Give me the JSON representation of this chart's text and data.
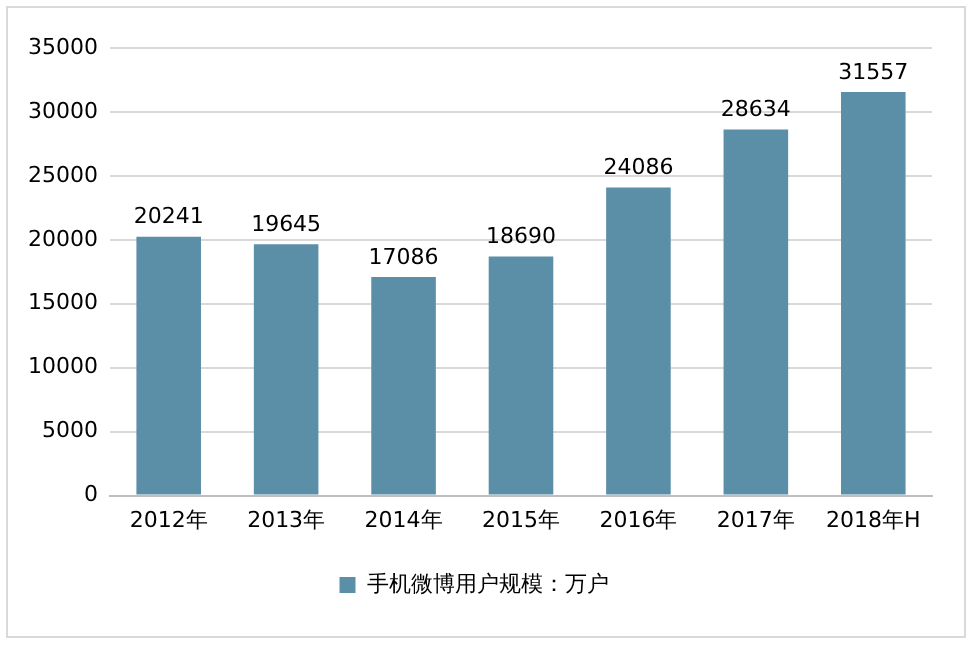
{
  "chart_data": {
    "type": "bar",
    "categories": [
      "2012年",
      "2013年",
      "2014年",
      "2015年",
      "2016年",
      "2017年",
      "2018年H"
    ],
    "series": [
      {
        "name": "手机微博用户规模：万户",
        "color": "#5b8fa8",
        "values": [
          20241,
          19645,
          17086,
          18690,
          24086,
          28634,
          31557
        ]
      }
    ],
    "ylim": [
      0,
      35000
    ],
    "yticks": [
      0,
      5000,
      10000,
      15000,
      20000,
      25000,
      30000,
      35000
    ],
    "grid": "y",
    "legend": "bottom",
    "data_labels": true
  }
}
